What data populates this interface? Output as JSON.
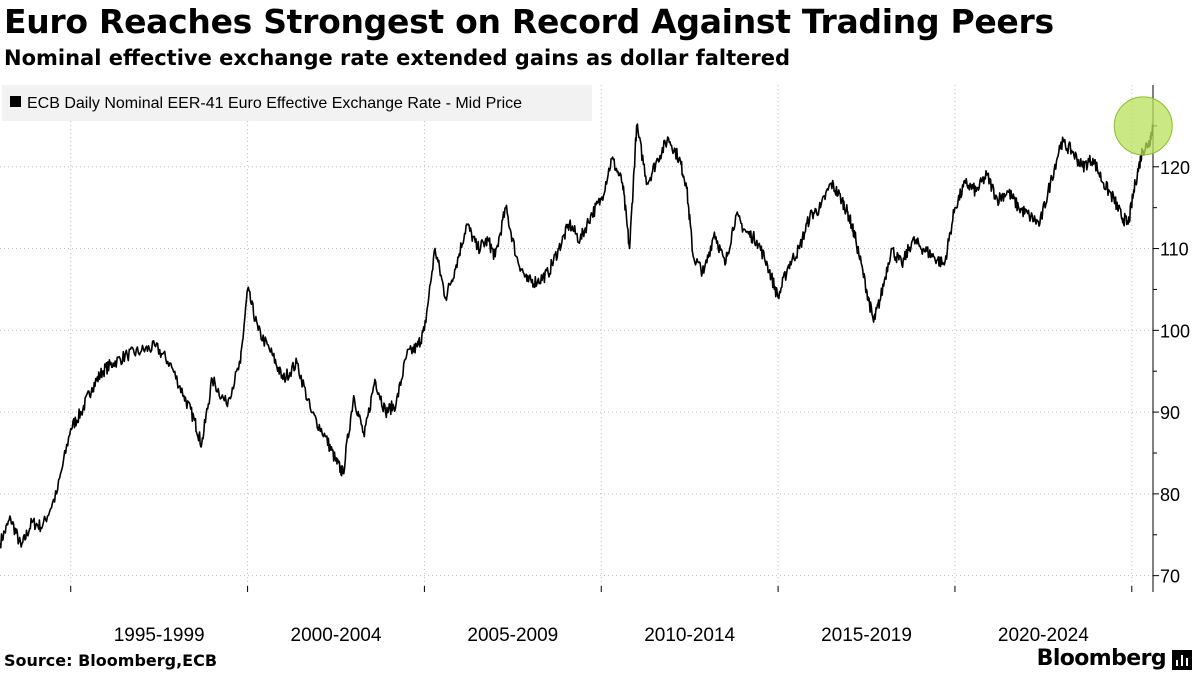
{
  "header": {
    "title": "Euro Reaches Strongest on Record Against Trading Peers",
    "subtitle": "Nominal effective exchange rate extended gains as dollar faltered"
  },
  "footer": {
    "source": "Source: Bloomberg,ECB",
    "brand": "Bloomberg",
    "brand_icon": "bloomberg-bars-icon"
  },
  "colors": {
    "line": "#000000",
    "highlight_fill": "#b8e05a",
    "highlight_stroke": "#8cbf2a",
    "legend_bg": "#f2f2f2",
    "grid": "#bfbfbf"
  },
  "chart_data": {
    "type": "line",
    "title": "Euro Reaches Strongest on Record Against Trading Peers",
    "subtitle": "Nominal effective exchange rate extended gains as dollar faltered",
    "legend": {
      "placement": "top-left",
      "entries": [
        "ECB Daily Nominal EER-41 Euro Effective Exchange Rate - Mid Price"
      ]
    },
    "x_tick_labels": [
      "1995-1999",
      "2000-2004",
      "2005-2009",
      "2010-2014",
      "2015-2019",
      "2020-2024"
    ],
    "x_range": [
      1993.0,
      2025.6
    ],
    "y_ticks": [
      70,
      80,
      90,
      100,
      110,
      120
    ],
    "ylim": [
      68,
      130
    ],
    "y_axis_side": "right",
    "grid": "dotted",
    "highlight": {
      "x": 2025.55,
      "y": 125,
      "description_shape": "circle"
    },
    "series": [
      {
        "name": "ECB Daily Nominal EER-41 Euro Effective Exchange Rate - Mid Price",
        "points": [
          [
            1993.0,
            74
          ],
          [
            1993.3,
            77
          ],
          [
            1993.6,
            73.5
          ],
          [
            1993.9,
            76.5
          ],
          [
            1994.2,
            76
          ],
          [
            1994.6,
            80
          ],
          [
            1995.0,
            88
          ],
          [
            1995.3,
            90
          ],
          [
            1995.6,
            93
          ],
          [
            1995.9,
            95
          ],
          [
            1996.2,
            96
          ],
          [
            1996.6,
            97
          ],
          [
            1997.0,
            97.5
          ],
          [
            1997.4,
            98
          ],
          [
            1997.8,
            96
          ],
          [
            1998.2,
            92
          ],
          [
            1998.5,
            89
          ],
          [
            1998.7,
            86
          ],
          [
            1999.0,
            94
          ],
          [
            1999.4,
            91
          ],
          [
            1999.8,
            96
          ],
          [
            2000.0,
            105
          ],
          [
            2000.3,
            100
          ],
          [
            2000.7,
            97
          ],
          [
            2001.0,
            94
          ],
          [
            2001.4,
            96
          ],
          [
            2001.8,
            90
          ],
          [
            2002.2,
            87
          ],
          [
            2002.5,
            84
          ],
          [
            2002.7,
            82.5
          ],
          [
            2003.0,
            92
          ],
          [
            2003.3,
            87
          ],
          [
            2003.6,
            94
          ],
          [
            2003.9,
            90
          ],
          [
            2004.2,
            91
          ],
          [
            2004.5,
            97
          ],
          [
            2004.8,
            98
          ],
          [
            2005.0,
            100
          ],
          [
            2005.3,
            110
          ],
          [
            2005.6,
            104
          ],
          [
            2005.9,
            108
          ],
          [
            2006.2,
            113
          ],
          [
            2006.5,
            110
          ],
          [
            2006.8,
            111
          ],
          [
            2007.0,
            109
          ],
          [
            2007.3,
            115
          ],
          [
            2007.6,
            109
          ],
          [
            2007.9,
            106
          ],
          [
            2008.2,
            106
          ],
          [
            2008.5,
            107
          ],
          [
            2008.8,
            110
          ],
          [
            2009.1,
            113
          ],
          [
            2009.4,
            111
          ],
          [
            2009.7,
            114
          ],
          [
            2010.0,
            116
          ],
          [
            2010.3,
            121
          ],
          [
            2010.6,
            118
          ],
          [
            2010.8,
            110
          ],
          [
            2011.0,
            125
          ],
          [
            2011.3,
            118
          ],
          [
            2011.6,
            121
          ],
          [
            2011.9,
            123.5
          ],
          [
            2012.2,
            121
          ],
          [
            2012.4,
            118
          ],
          [
            2012.6,
            109
          ],
          [
            2012.9,
            107
          ],
          [
            2013.2,
            112
          ],
          [
            2013.5,
            108
          ],
          [
            2013.8,
            114
          ],
          [
            2014.1,
            112
          ],
          [
            2014.4,
            111
          ],
          [
            2014.7,
            108
          ],
          [
            2015.0,
            104
          ],
          [
            2015.3,
            108
          ],
          [
            2015.6,
            110
          ],
          [
            2015.9,
            114
          ],
          [
            2016.2,
            115
          ],
          [
            2016.5,
            118
          ],
          [
            2016.8,
            116
          ],
          [
            2017.0,
            114
          ],
          [
            2017.2,
            111
          ],
          [
            2017.5,
            105
          ],
          [
            2017.7,
            101
          ],
          [
            2017.9,
            104
          ],
          [
            2018.2,
            110
          ],
          [
            2018.5,
            108
          ],
          [
            2018.8,
            111
          ],
          [
            2019.1,
            110
          ],
          [
            2019.4,
            109
          ],
          [
            2019.7,
            108
          ],
          [
            2020.0,
            115
          ],
          [
            2020.3,
            118
          ],
          [
            2020.6,
            117
          ],
          [
            2020.9,
            119
          ],
          [
            2021.2,
            116
          ],
          [
            2021.5,
            117
          ],
          [
            2021.8,
            115
          ],
          [
            2022.1,
            114
          ],
          [
            2022.4,
            113
          ],
          [
            2022.7,
            118
          ],
          [
            2023.0,
            123
          ],
          [
            2023.3,
            122
          ],
          [
            2023.6,
            120
          ],
          [
            2023.9,
            121
          ],
          [
            2024.2,
            118
          ],
          [
            2024.5,
            116
          ],
          [
            2024.7,
            114
          ],
          [
            2024.9,
            113
          ],
          [
            2025.1,
            118
          ],
          [
            2025.3,
            122
          ],
          [
            2025.5,
            123
          ],
          [
            2025.6,
            125
          ]
        ]
      }
    ]
  }
}
